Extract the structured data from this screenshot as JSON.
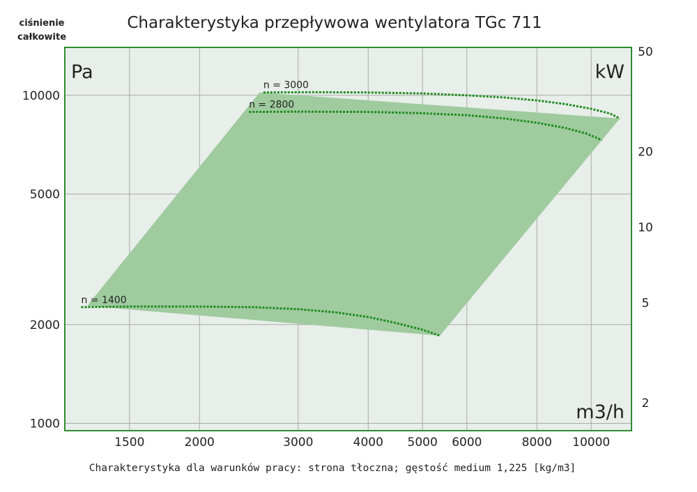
{
  "chart_data": {
    "type": "area",
    "title": "Charakterystyka przepływowa wentylatora TGc 711",
    "ylabel_lines": [
      "ciśnienie",
      "całkowite"
    ],
    "ylabel_unit": "Pa",
    "y2label_unit": "kW",
    "xlabel": "m3/h",
    "caption": "Charakterystyka dla warunków pracy: strona tłoczna; gęstość medium 1,225 [kg/m3]",
    "x_scale": "log",
    "y_scale": "log",
    "y2_scale": "log",
    "xlim": [
      1150,
      11800
    ],
    "ylim": [
      950,
      14000
    ],
    "y2lim": [
      1.55,
      52
    ],
    "x_ticks": [
      1500,
      2000,
      3000,
      4000,
      5000,
      6000,
      8000,
      10000
    ],
    "y_ticks": [
      1000,
      2000,
      5000,
      10000
    ],
    "y2_ticks": [
      2,
      5,
      10,
      20,
      50
    ],
    "grid": true,
    "colors": {
      "plot_bg": "#e8eeea",
      "frame": "#2e8b2e",
      "area_fill": "#9fcb9f",
      "curve": "#1f8a1f",
      "grid": "#a8aca8"
    },
    "envelope": {
      "x": [
        1260,
        2560,
        11250,
        5370
      ],
      "y": [
        2280,
        10200,
        8500,
        1850
      ]
    },
    "series": [
      {
        "name": "n = 3000",
        "x": [
          2600,
          3200,
          4000,
          5000,
          6000,
          7000,
          8000,
          9000,
          10000,
          10800,
          11250
        ],
        "y": [
          10200,
          10220,
          10200,
          10130,
          10000,
          9850,
          9650,
          9400,
          9100,
          8800,
          8500
        ]
      },
      {
        "name": "n = 2800",
        "x": [
          2450,
          3000,
          4000,
          5000,
          6000,
          7000,
          8000,
          9000,
          9800,
          10450
        ],
        "y": [
          8900,
          8920,
          8900,
          8820,
          8700,
          8500,
          8250,
          7950,
          7650,
          7300
        ]
      },
      {
        "name": "n = 1400",
        "x": [
          1230,
          1500,
          2000,
          2500,
          3000,
          3500,
          4000,
          4500,
          5000,
          5370
        ],
        "y": [
          2260,
          2270,
          2270,
          2260,
          2230,
          2180,
          2110,
          2020,
          1930,
          1850
        ]
      }
    ]
  }
}
